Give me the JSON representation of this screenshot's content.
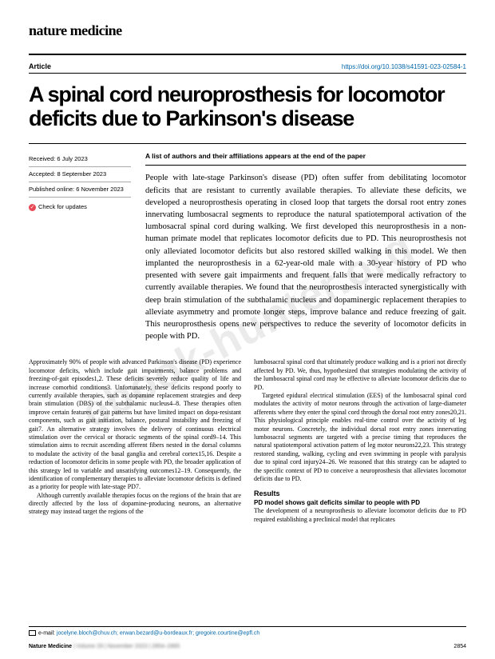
{
  "journal": "nature medicine",
  "article_label": "Article",
  "doi": "https://doi.org/10.1038/s41591-023-02584-1",
  "title": "A spinal cord neuroprosthesis for locomotor deficits due to Parkinson's disease",
  "meta": {
    "received": "Received: 6 July 2023",
    "accepted": "Accepted: 8 September 2023",
    "published": "Published online: 6 November 2023",
    "updates": "Check for updates"
  },
  "authors_note": "A list of authors and their affiliations appears at the end of the paper",
  "abstract": "People with late-stage Parkinson's disease (PD) often suffer from debilitating locomotor deficits that are resistant to currently available therapies. To alleviate these deficits, we developed a neuroprosthesis operating in closed loop that targets the dorsal root entry zones innervating lumbosacral segments to reproduce the natural spatiotemporal activation of the lumbosacral spinal cord during walking. We first developed this neuroprosthesis in a non-human primate model that replicates locomotor deficits due to PD. This neuroprosthesis not only alleviated locomotor deficits but also restored skilled walking in this model. We then implanted the neuroprosthesis in a 62-year-old male with a 30-year history of PD who presented with severe gait impairments and frequent falls that were medically refractory to currently available therapies. We found that the neuroprosthesis interacted synergistically with deep brain stimulation of the subthalamic nucleus and dopaminergic replacement therapies to alleviate asymmetry and promote longer steps, improve balance and reduce freezing of gait. This neuroprosthesis opens new perspectives to reduce the severity of locomotor deficits in people with PD.",
  "body": {
    "col1_p1": "Approximately 90% of people with advanced Parkinson's disease (PD) experience locomotor deficits, which include gait impairments, balance problems and freezing-of-gait episodes1,2. These deficits severely reduce quality of life and increase comorbid conditions3. Unfortunately, these deficits respond poorly to currently available therapies, such as dopamine replacement strategies and deep brain stimulation (DBS) of the subthalamic nucleus4–8. These therapies often improve certain features of gait patterns but have limited impact on dopa-resistant components, such as gait initiation, balance, postural instability and freezing of gait7. An alternative strategy involves the delivery of continuous electrical stimulation over the cervical or thoracic segments of the spinal cord9–14. This stimulation aims to recruit ascending afferent fibers nested in the dorsal columns to modulate the activity of the basal ganglia and cerebral cortex15,16. Despite a reduction of locomotor deficits in some people with PD, the broader application of this strategy led to variable and unsatisfying outcomes12–19. Consequently, the identification of complementary therapies to alleviate locomotor deficits is defined as a priority for people with late-stage PD7.",
    "col1_p2": "Although currently available therapies focus on the regions of the brain that are directly affected by the loss of dopamine-producing neurons, an alternative strategy may instead target the regions of the",
    "col2_p1": "lumbosacral spinal cord that ultimately produce walking and is a priori not directly affected by PD. We, thus, hypothesized that strategies modulating the activity of the lumbosacral spinal cord may be effective to alleviate locomotor deficits due to PD.",
    "col2_p2": "Targeted epidural electrical stimulation (EES) of the lumbosacral spinal cord modulates the activity of motor neurons through the activation of large-diameter afferents where they enter the spinal cord through the dorsal root entry zones20,21. This physiological principle enables real-time control over the activity of leg motor neurons. Concretely, the individual dorsal root entry zones innervating lumbosacral segments are targeted with a precise timing that reproduces the natural spatiotemporal activation pattern of leg motor neurons22,23. This strategy restored standing, walking, cycling and even swimming in people with paralysis due to spinal cord injury24–26. We reasoned that this strategy can be adapted to the specific context of PD to conceive a neuroprosthesis that alleviates locomotor deficits due to PD.",
    "results_head": "Results",
    "subsection": "PD model shows gait deficits similar to people with PD",
    "col2_p3": "The development of a neuroprosthesis to alleviate locomotor deficits due to PD required establishing a preclinical model that replicates"
  },
  "footer": {
    "emails": "jocelyne.bloch@chuv.ch; erwan.bezard@u-bordeaux.fr; gregoire.courtine@epfl.ch",
    "journal_line_a": "Nature Medicine",
    "journal_line_b": " | Volume 29 | November 2023 | 2854–2865",
    "page_number": "2854"
  },
  "watermark": "ebook-hunter.org",
  "colors": {
    "link": "#0066aa",
    "check_bg": "#e84855",
    "text": "#000000",
    "background": "#ffffff"
  }
}
